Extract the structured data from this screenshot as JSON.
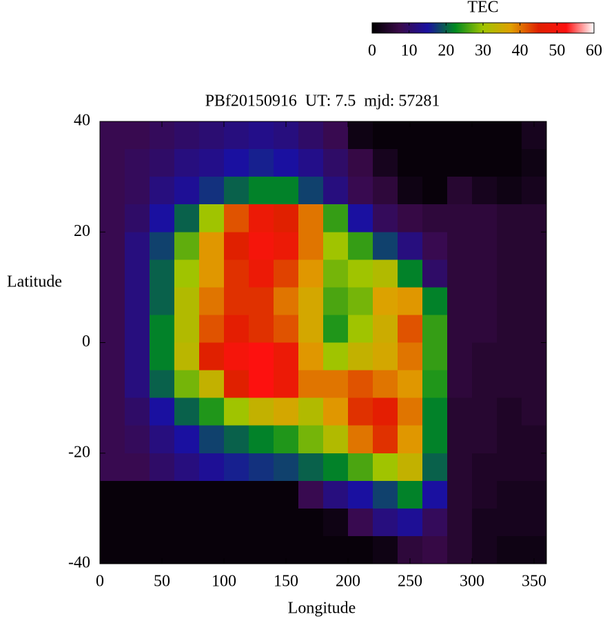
{
  "chart_data": {
    "type": "heatmap",
    "title": "PBf20150916  UT: 7.5  mjd: 57281",
    "x_label": "Longitude",
    "y_label": "Latitude",
    "xlim": [
      0,
      360
    ],
    "xticks": [
      0,
      50,
      100,
      150,
      200,
      250,
      300,
      350
    ],
    "ylim": [
      -40,
      40
    ],
    "yticks": [
      -40,
      -20,
      0,
      20,
      40
    ],
    "colorbar_label": "TEC",
    "zlim": [
      0,
      60
    ],
    "zticks": [
      0,
      10,
      20,
      30,
      40,
      50,
      60
    ],
    "colormap": [
      "#000000",
      "#3a0a4a",
      "#1a10a0",
      "#008a20",
      "#a0c400",
      "#e0a000",
      "#e02000",
      "#ff1010",
      "#ffffff"
    ],
    "x": [
      10,
      30,
      50,
      70,
      90,
      110,
      130,
      150,
      170,
      190,
      210,
      230,
      250,
      270,
      290,
      310,
      330,
      350
    ],
    "y": [
      37.5,
      32.5,
      27.5,
      22.5,
      17.5,
      12.5,
      7.5,
      2.5,
      -2.5,
      -7.5,
      -12.5,
      -17.5,
      -22.5,
      -27.5,
      -32.5,
      -37.5
    ],
    "z": [
      [
        8,
        8,
        9,
        10,
        11,
        12,
        13,
        12,
        10,
        8,
        2,
        1,
        1,
        1,
        1,
        1,
        1,
        3
      ],
      [
        8,
        9,
        10,
        12,
        13,
        15,
        16,
        15,
        13,
        10,
        7,
        3,
        1,
        1,
        1,
        1,
        1,
        2
      ],
      [
        8,
        9,
        12,
        14,
        17,
        20,
        22,
        22,
        18,
        12,
        8,
        6,
        2,
        1,
        5,
        3,
        2,
        3
      ],
      [
        8,
        10,
        15,
        20,
        30,
        42,
        48,
        45,
        40,
        25,
        15,
        9,
        7,
        6,
        6,
        6,
        5,
        5
      ],
      [
        8,
        12,
        18,
        27,
        38,
        45,
        50,
        48,
        40,
        30,
        25,
        18,
        12,
        8,
        6,
        6,
        5,
        5
      ],
      [
        8,
        12,
        20,
        30,
        38,
        44,
        48,
        43,
        38,
        28,
        30,
        32,
        22,
        10,
        6,
        6,
        5,
        5
      ],
      [
        8,
        12,
        20,
        32,
        40,
        44,
        44,
        40,
        36,
        26,
        28,
        37,
        38,
        22,
        6,
        6,
        5,
        5
      ],
      [
        8,
        12,
        22,
        32,
        42,
        46,
        44,
        42,
        36,
        24,
        30,
        35,
        42,
        25,
        6,
        6,
        5,
        5
      ],
      [
        8,
        12,
        22,
        33,
        45,
        50,
        52,
        48,
        38,
        30,
        34,
        36,
        40,
        25,
        6,
        5,
        5,
        5
      ],
      [
        8,
        12,
        20,
        28,
        34,
        45,
        52,
        48,
        40,
        40,
        42,
        40,
        38,
        24,
        6,
        5,
        5,
        5
      ],
      [
        8,
        10,
        15,
        20,
        24,
        30,
        34,
        36,
        32,
        38,
        44,
        46,
        40,
        22,
        5,
        5,
        4,
        5
      ],
      [
        8,
        9,
        12,
        15,
        18,
        20,
        22,
        24,
        28,
        32,
        40,
        44,
        38,
        22,
        5,
        5,
        4,
        4
      ],
      [
        8,
        8,
        10,
        12,
        14,
        16,
        17,
        18,
        20,
        22,
        26,
        30,
        34,
        20,
        5,
        4,
        4,
        4
      ],
      [
        1,
        1,
        1,
        1,
        1,
        1,
        1,
        1,
        8,
        12,
        15,
        18,
        22,
        15,
        5,
        4,
        3,
        3
      ],
      [
        1,
        1,
        1,
        1,
        1,
        1,
        1,
        1,
        1,
        2,
        8,
        12,
        14,
        9,
        5,
        3,
        3,
        3
      ],
      [
        1,
        1,
        1,
        1,
        1,
        1,
        1,
        1,
        1,
        1,
        1,
        2,
        6,
        7,
        5,
        3,
        2,
        2
      ]
    ]
  }
}
